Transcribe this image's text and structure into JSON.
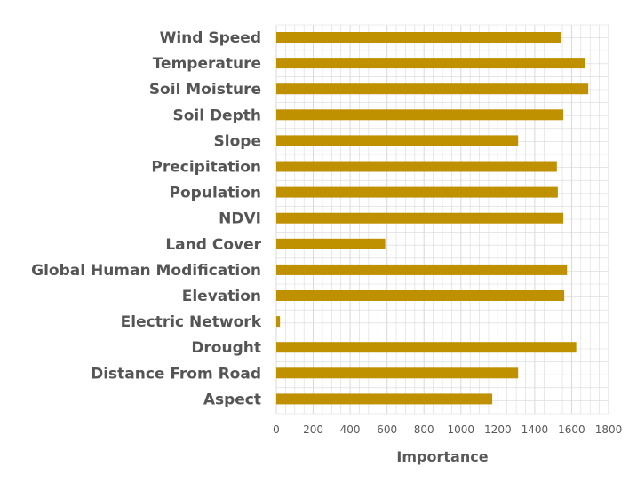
{
  "chart_data": {
    "type": "bar",
    "orientation": "horizontal",
    "categories": [
      "Wind Speed",
      "Temperature",
      "Soil Moisture",
      "Soil Depth",
      "Slope",
      "Precipitation",
      "Population",
      "NDVI",
      "Land Cover",
      "Global Human Modification",
      "Elevation",
      "Electric Network",
      "Drought",
      "Distance From Road",
      "Aspect"
    ],
    "values": [
      1540,
      1675,
      1690,
      1555,
      1310,
      1520,
      1525,
      1555,
      590,
      1575,
      1560,
      20,
      1625,
      1310,
      1170
    ],
    "xlabel": "Importance",
    "ylabel": "",
    "xlim": [
      0,
      1800
    ],
    "xticks": [
      "0",
      "200",
      "400",
      "600",
      "800",
      "1000",
      "1200",
      "1400",
      "1600",
      "1800"
    ],
    "grid": true,
    "bar_color": "#BF9000",
    "grid_color": "#D9D9D9"
  }
}
